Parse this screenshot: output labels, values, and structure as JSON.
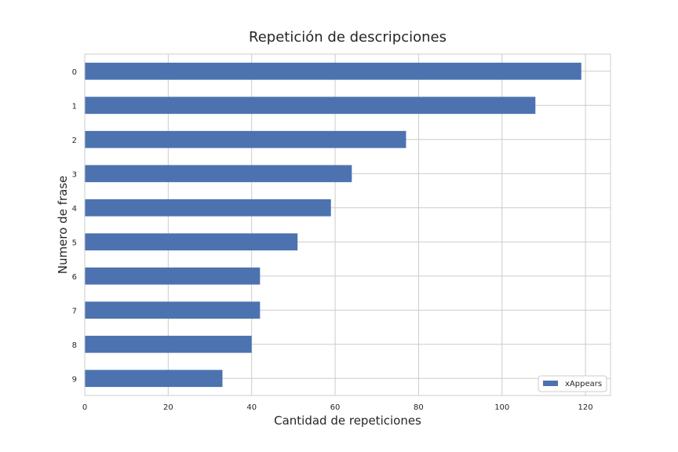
{
  "chart_data": {
    "type": "bar",
    "orientation": "horizontal",
    "title": "Repetición de descripciones",
    "xlabel": "Cantidad de repeticiones",
    "ylabel": "Numero de frase",
    "categories": [
      "0",
      "1",
      "2",
      "3",
      "4",
      "5",
      "6",
      "7",
      "8",
      "9"
    ],
    "series": [
      {
        "name": "xAppears",
        "values": [
          119,
          108,
          77,
          64,
          59,
          51,
          42,
          42,
          40,
          33
        ]
      }
    ],
    "xlim": [
      0,
      126
    ],
    "xticks": [
      "0",
      "20",
      "40",
      "60",
      "80",
      "100",
      "120"
    ],
    "xtick_values": [
      0,
      20,
      40,
      60,
      80,
      100,
      120
    ],
    "grid": true,
    "legend_position": "bottom-right",
    "colors": {
      "bar": "#4c72b0",
      "grid": "#cccccc",
      "frame": "#cccccc"
    }
  }
}
